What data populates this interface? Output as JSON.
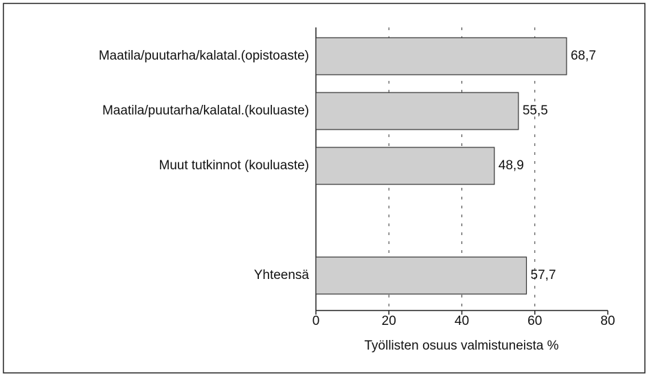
{
  "chart_data": {
    "type": "bar",
    "orientation": "horizontal",
    "x_label": "Työllisten osuus valmistuneista %",
    "categories": [
      "Maatila/puutarha/kalatal.(opistoaste)",
      "Maatila/puutarha/kalatal.(kouluaste)",
      "Muut tutkinnot (kouluaste)",
      null,
      "Yhteensä"
    ],
    "values": [
      68.7,
      55.5,
      48.9,
      null,
      57.7
    ],
    "value_labels": [
      "68,7",
      "55,5",
      "48,9",
      null,
      "57,7"
    ],
    "color": "#cfcfcf",
    "xlim": [
      0,
      80
    ],
    "xticks": [
      0,
      20,
      40,
      60,
      80
    ],
    "grid": true
  }
}
